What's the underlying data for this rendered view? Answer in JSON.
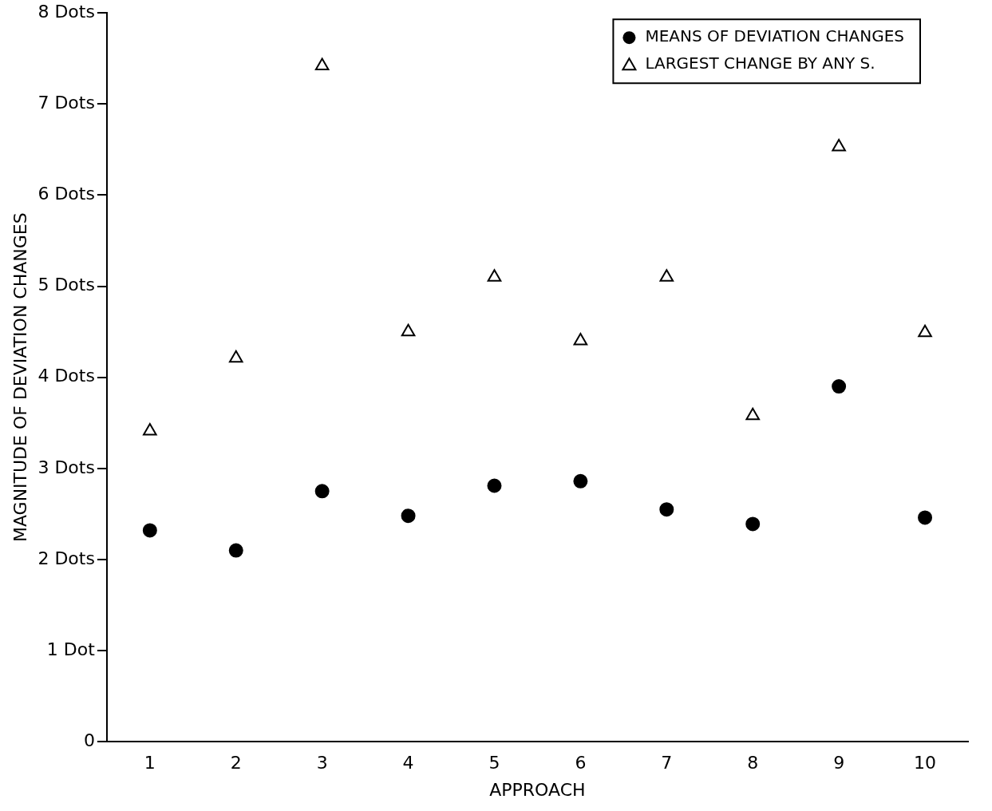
{
  "chart_data": {
    "type": "scatter",
    "xlabel": "APPROACH",
    "ylabel": "MAGNITUDE OF DEVIATION CHANGES",
    "categories": [
      "1",
      "2",
      "3",
      "4",
      "5",
      "6",
      "7",
      "8",
      "9",
      "10"
    ],
    "series": [
      {
        "name": "MEANS OF DEVIATION CHANGES",
        "color": "#000000",
        "marker": "circle",
        "values": [
          2.32,
          2.1,
          2.75,
          2.48,
          2.81,
          2.86,
          2.55,
          2.39,
          3.9,
          2.46
        ]
      },
      {
        "name": "LARGEST CHANGE BY ANY S.",
        "color": "#000000",
        "marker": "triangle",
        "values": [
          3.41,
          4.21,
          7.42,
          4.5,
          5.1,
          4.4,
          5.1,
          3.58,
          6.53,
          4.49
        ]
      }
    ],
    "ylim": [
      0,
      8
    ],
    "yticks": [
      {
        "value": 0,
        "label": "0"
      },
      {
        "value": 1,
        "label": "1 Dot"
      },
      {
        "value": 2,
        "label": "2 Dots"
      },
      {
        "value": 3,
        "label": "3 Dots"
      },
      {
        "value": 4,
        "label": "4 Dots"
      },
      {
        "value": 5,
        "label": "5 Dots"
      },
      {
        "value": 6,
        "label": "6 Dots"
      },
      {
        "value": 7,
        "label": "7 Dots"
      },
      {
        "value": 8,
        "label": "8 Dots"
      }
    ],
    "grid": false,
    "legend": "top right"
  }
}
